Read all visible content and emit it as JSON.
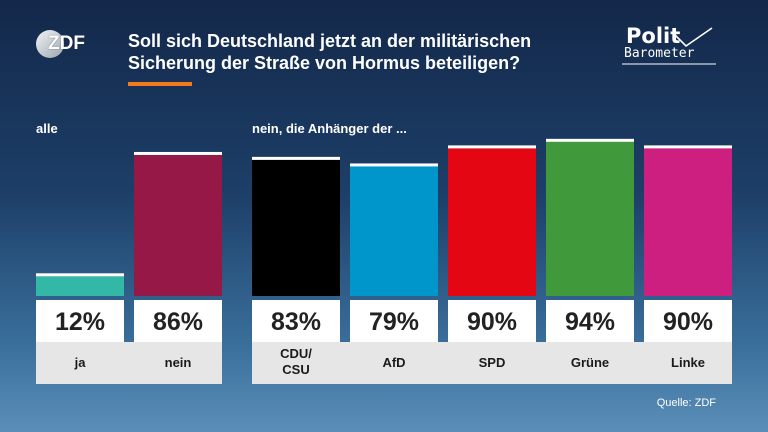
{
  "header": {
    "brand": "ZDF",
    "title_line1": "Soll sich Deutschland jetzt an der militärischen",
    "title_line2": "Sicherung der Straße von Hormus beteiligen?",
    "accent_color": "#f47a20",
    "barometer_line1": "Polit",
    "barometer_line2": "Barometer"
  },
  "groups": {
    "left_label": "alle",
    "right_label": "nein, die Anhänger der ..."
  },
  "chart_data": {
    "type": "bar",
    "title": "Soll sich Deutschland jetzt an der militärischen Sicherung der Straße von Hormus beteiligen?",
    "categories": [
      "ja",
      "nein",
      "CDU/ CSU",
      "AfD",
      "SPD",
      "Grüne",
      "Linke"
    ],
    "values": [
      12,
      86,
      83,
      79,
      90,
      94,
      90
    ],
    "value_labels": [
      "12%",
      "86%",
      "83%",
      "79%",
      "90%",
      "94%",
      "90%"
    ],
    "unit": "%",
    "colors": [
      "#33b8a8",
      "#951846",
      "#000000",
      "#0096cc",
      "#e40613",
      "#409a3c",
      "#cd1f7f"
    ],
    "ylim": [
      0,
      100
    ],
    "grid": false,
    "legend": "none"
  },
  "footer": {
    "source": "Quelle: ZDF"
  }
}
